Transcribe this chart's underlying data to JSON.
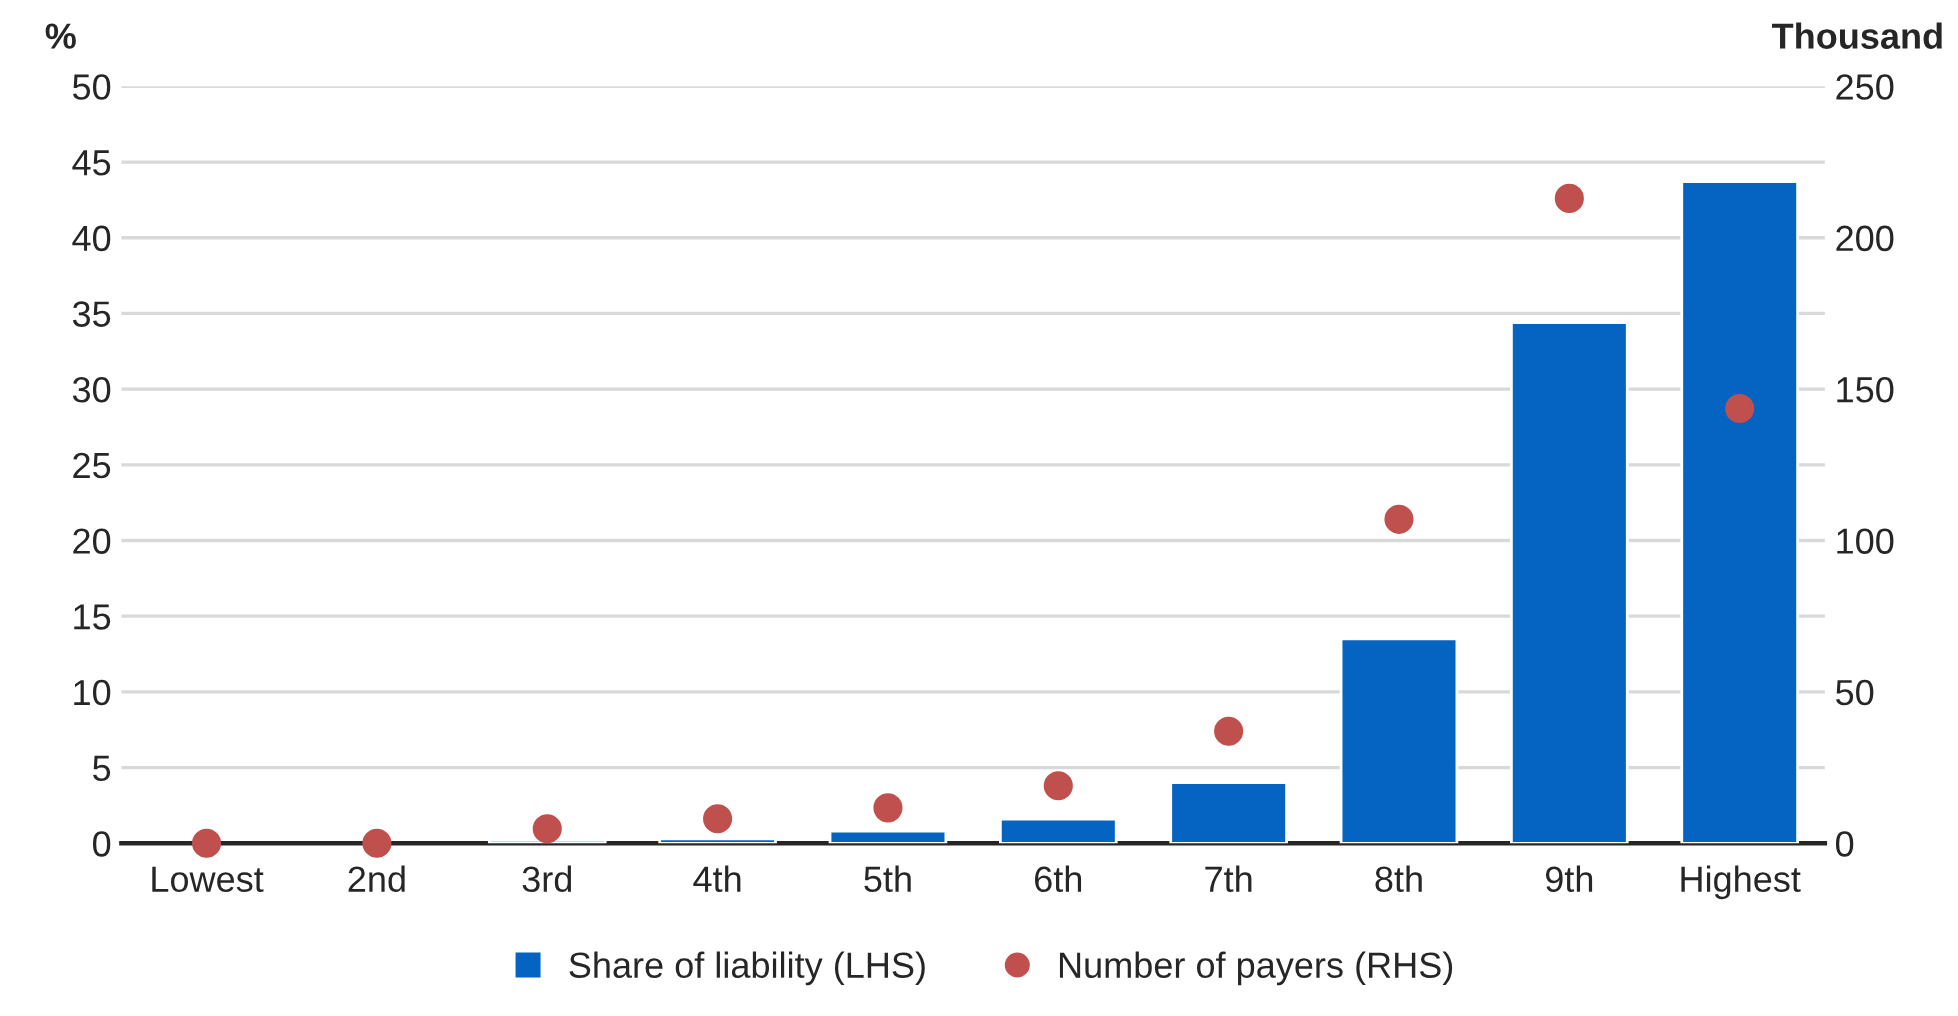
{
  "chart_data": {
    "type": "bar",
    "categories": [
      "Lowest",
      "2nd",
      "3rd",
      "4th",
      "5th",
      "6th",
      "7th",
      "8th",
      "9th",
      "Highest"
    ],
    "ylabel": "%",
    "y2label": "Thousand",
    "ylim": [
      0,
      50
    ],
    "yticks": [
      0,
      5,
      10,
      15,
      20,
      25,
      30,
      35,
      40,
      45,
      50
    ],
    "y2lim": [
      0,
      250
    ],
    "y2ticks": [
      0,
      50,
      100,
      150,
      200,
      250
    ],
    "grid": "y",
    "legend": "bottom",
    "series": [
      {
        "name": "Share of liability (LHS)",
        "color": "#0563c1",
        "values": [
          null,
          null,
          0.2,
          0.3,
          0.8,
          1.6,
          4.0,
          13.5,
          34.4,
          43.7
        ]
      },
      {
        "name": "Number of payers (RHS)",
        "type": "scatter",
        "axis": "y2",
        "marker": "circle",
        "color": "#c0504d",
        "values": [
          0,
          0,
          4.8,
          8.1,
          11.7,
          19,
          37,
          107,
          213,
          143.6
        ]
      }
    ]
  }
}
